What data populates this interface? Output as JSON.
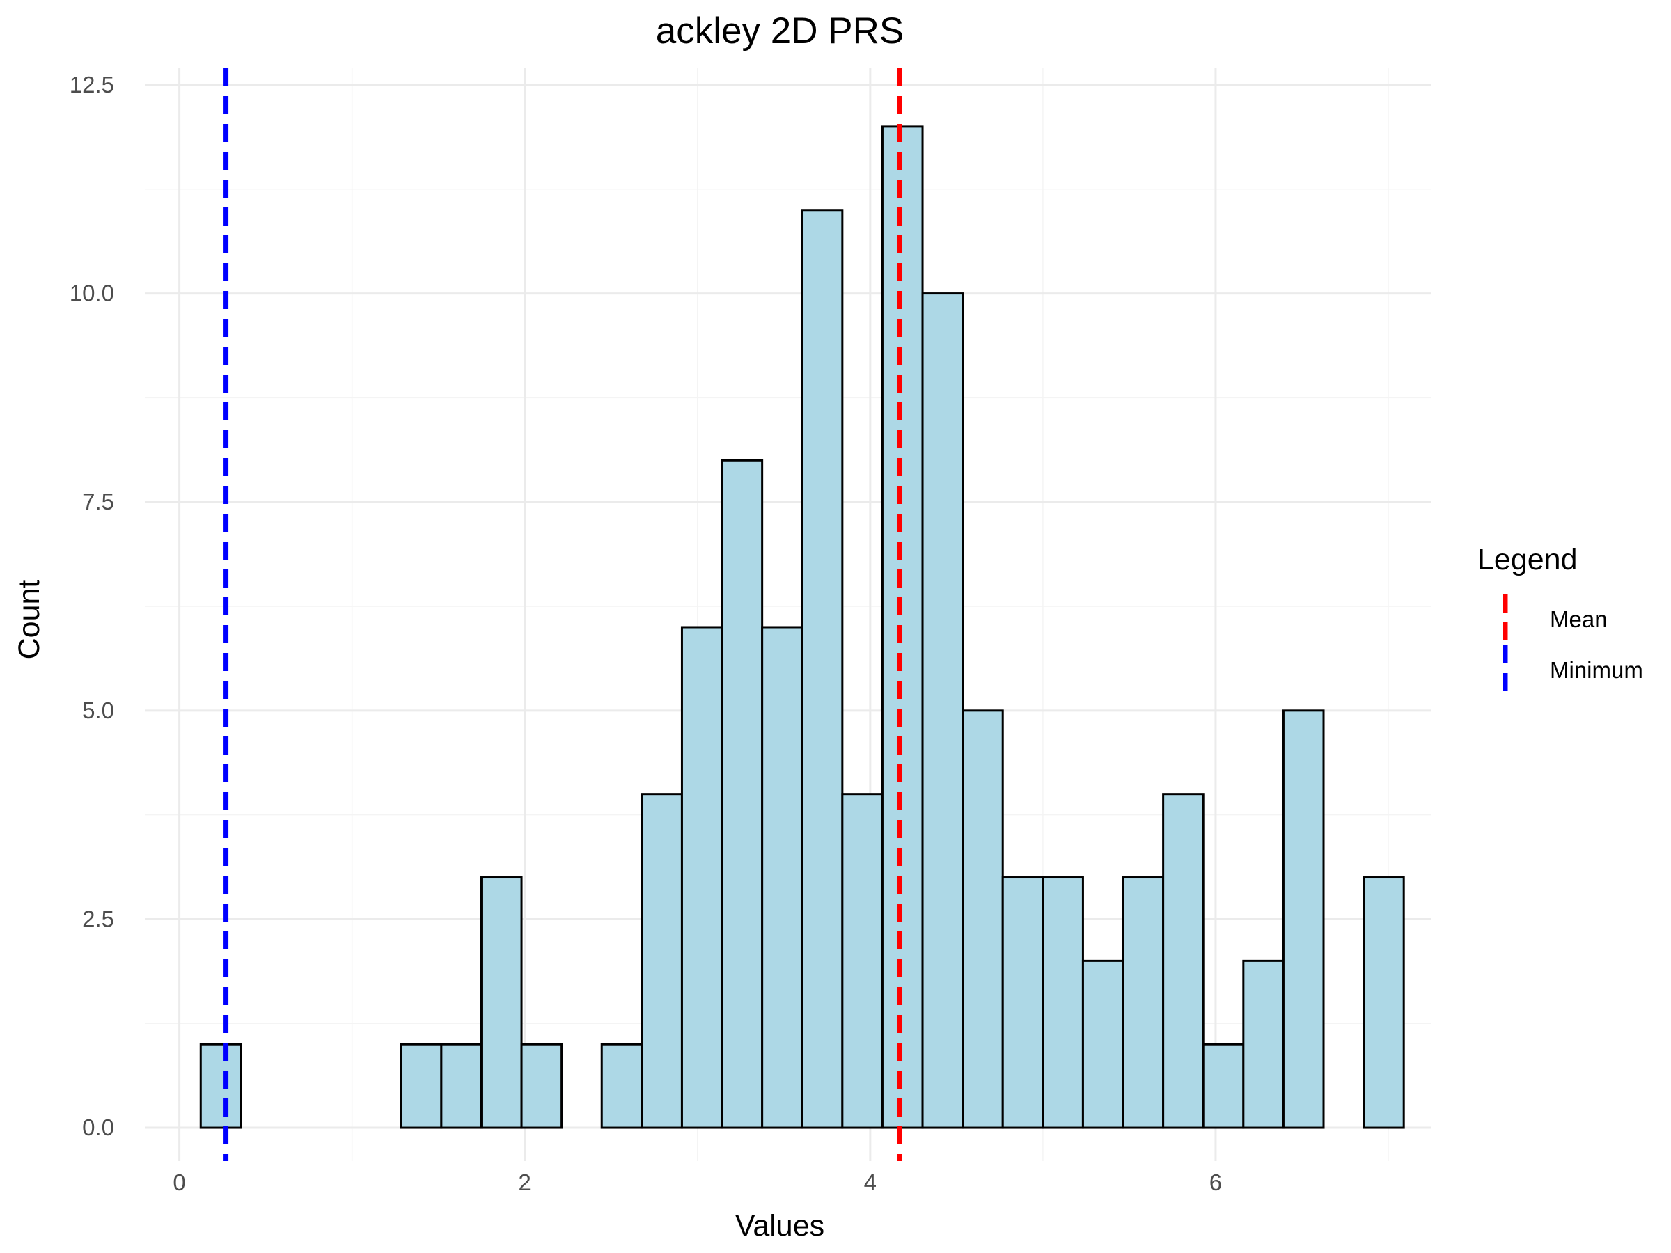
{
  "chart_data": {
    "type": "bar",
    "title": "ackley 2D PRS",
    "xlabel": "Values",
    "ylabel": "Count",
    "xlim": [
      -0.2,
      7.25
    ],
    "ylim": [
      -0.4,
      12.7
    ],
    "x_ticks": [
      0,
      2,
      4,
      6
    ],
    "x_tick_labels": [
      "0",
      "2",
      "4",
      "6"
    ],
    "y_ticks": [
      0,
      2.5,
      5,
      7.5,
      10,
      12.5
    ],
    "y_tick_labels": [
      "0.0",
      "2.5",
      "5.0",
      "7.5",
      "10.0",
      "12.5"
    ],
    "grid": true,
    "bin_width": 0.2322,
    "bin_start": 0.1236,
    "counts": [
      1,
      0,
      0,
      0,
      0,
      1,
      1,
      3,
      1,
      0,
      1,
      4,
      6,
      8,
      6,
      11,
      4,
      12,
      10,
      5,
      3,
      3,
      2,
      3,
      4,
      1,
      2,
      5,
      0,
      3
    ],
    "bar_fill": "#add8e6",
    "bar_stroke": "#000000",
    "reference_lines": [
      {
        "name": "Mean",
        "x": 4.17,
        "color": "#ff0000",
        "style": "dashed"
      },
      {
        "name": "Minimum",
        "x": 0.27,
        "color": "#0000ff",
        "style": "dashed"
      }
    ],
    "legend": {
      "title": "Legend",
      "placement": "right",
      "entries": [
        "Mean",
        "Minimum"
      ]
    }
  }
}
